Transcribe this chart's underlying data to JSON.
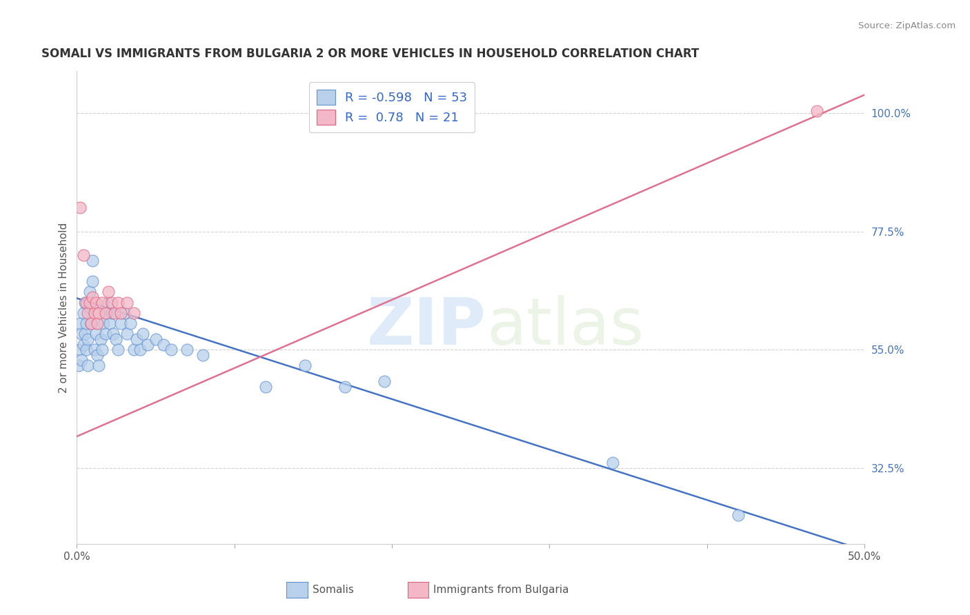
{
  "title": "SOMALI VS IMMIGRANTS FROM BULGARIA 2 OR MORE VEHICLES IN HOUSEHOLD CORRELATION CHART",
  "source": "Source: ZipAtlas.com",
  "ylabel": "2 or more Vehicles in Household",
  "xlim": [
    0.0,
    0.5
  ],
  "ylim": [
    0.18,
    1.08
  ],
  "x_ticks": [
    0.0,
    0.1,
    0.2,
    0.3,
    0.4,
    0.5
  ],
  "x_tick_labels": [
    "0.0%",
    "",
    "",
    "",
    "",
    "50.0%"
  ],
  "y_ticks": [
    0.325,
    0.55,
    0.775,
    1.0
  ],
  "y_tick_labels": [
    "32.5%",
    "55.0%",
    "77.5%",
    "100.0%"
  ],
  "grid_color": "#d0d0d0",
  "background_color": "#ffffff",
  "somali_color": "#b8d0ea",
  "bulgaria_color": "#f2b8c6",
  "somali_edge_color": "#6090d0",
  "bulgaria_edge_color": "#e06080",
  "somali_line_color": "#4472c4",
  "bulgaria_line_color": "#e07090",
  "tick_label_color": "#4472c4",
  "somali_R": -0.598,
  "somali_N": 53,
  "bulgaria_R": 0.78,
  "bulgaria_N": 21,
  "watermark_zip": "ZIP",
  "watermark_atlas": "atlas",
  "somali_dots": [
    [
      0.001,
      0.52
    ],
    [
      0.002,
      0.55
    ],
    [
      0.002,
      0.6
    ],
    [
      0.003,
      0.58
    ],
    [
      0.003,
      0.53
    ],
    [
      0.004,
      0.56
    ],
    [
      0.004,
      0.62
    ],
    [
      0.005,
      0.64
    ],
    [
      0.005,
      0.58
    ],
    [
      0.006,
      0.6
    ],
    [
      0.006,
      0.55
    ],
    [
      0.007,
      0.57
    ],
    [
      0.007,
      0.52
    ],
    [
      0.008,
      0.63
    ],
    [
      0.008,
      0.66
    ],
    [
      0.009,
      0.6
    ],
    [
      0.01,
      0.68
    ],
    [
      0.01,
      0.72
    ],
    [
      0.011,
      0.55
    ],
    [
      0.012,
      0.58
    ],
    [
      0.013,
      0.54
    ],
    [
      0.014,
      0.52
    ],
    [
      0.015,
      0.57
    ],
    [
      0.016,
      0.55
    ],
    [
      0.017,
      0.6
    ],
    [
      0.018,
      0.58
    ],
    [
      0.019,
      0.62
    ],
    [
      0.02,
      0.64
    ],
    [
      0.021,
      0.6
    ],
    [
      0.022,
      0.62
    ],
    [
      0.023,
      0.58
    ],
    [
      0.025,
      0.57
    ],
    [
      0.026,
      0.55
    ],
    [
      0.028,
      0.6
    ],
    [
      0.03,
      0.62
    ],
    [
      0.032,
      0.58
    ],
    [
      0.034,
      0.6
    ],
    [
      0.036,
      0.55
    ],
    [
      0.038,
      0.57
    ],
    [
      0.04,
      0.55
    ],
    [
      0.042,
      0.58
    ],
    [
      0.045,
      0.56
    ],
    [
      0.05,
      0.57
    ],
    [
      0.055,
      0.56
    ],
    [
      0.06,
      0.55
    ],
    [
      0.07,
      0.55
    ],
    [
      0.08,
      0.54
    ],
    [
      0.12,
      0.48
    ],
    [
      0.145,
      0.52
    ],
    [
      0.17,
      0.48
    ],
    [
      0.195,
      0.49
    ],
    [
      0.34,
      0.335
    ],
    [
      0.42,
      0.235
    ]
  ],
  "bulgaria_dots": [
    [
      0.002,
      0.82
    ],
    [
      0.004,
      0.73
    ],
    [
      0.006,
      0.64
    ],
    [
      0.007,
      0.62
    ],
    [
      0.008,
      0.64
    ],
    [
      0.009,
      0.6
    ],
    [
      0.01,
      0.65
    ],
    [
      0.011,
      0.62
    ],
    [
      0.012,
      0.64
    ],
    [
      0.013,
      0.6
    ],
    [
      0.014,
      0.62
    ],
    [
      0.016,
      0.64
    ],
    [
      0.018,
      0.62
    ],
    [
      0.02,
      0.66
    ],
    [
      0.022,
      0.64
    ],
    [
      0.024,
      0.62
    ],
    [
      0.026,
      0.64
    ],
    [
      0.028,
      0.62
    ],
    [
      0.032,
      0.64
    ],
    [
      0.036,
      0.62
    ],
    [
      0.47,
      1.005
    ]
  ],
  "somali_line": {
    "x0": 0.0,
    "y0": 0.648,
    "x1": 0.5,
    "y1": 0.168
  },
  "bulgaria_line": {
    "x0": 0.0,
    "y0": 0.385,
    "x1": 0.5,
    "y1": 1.035
  }
}
